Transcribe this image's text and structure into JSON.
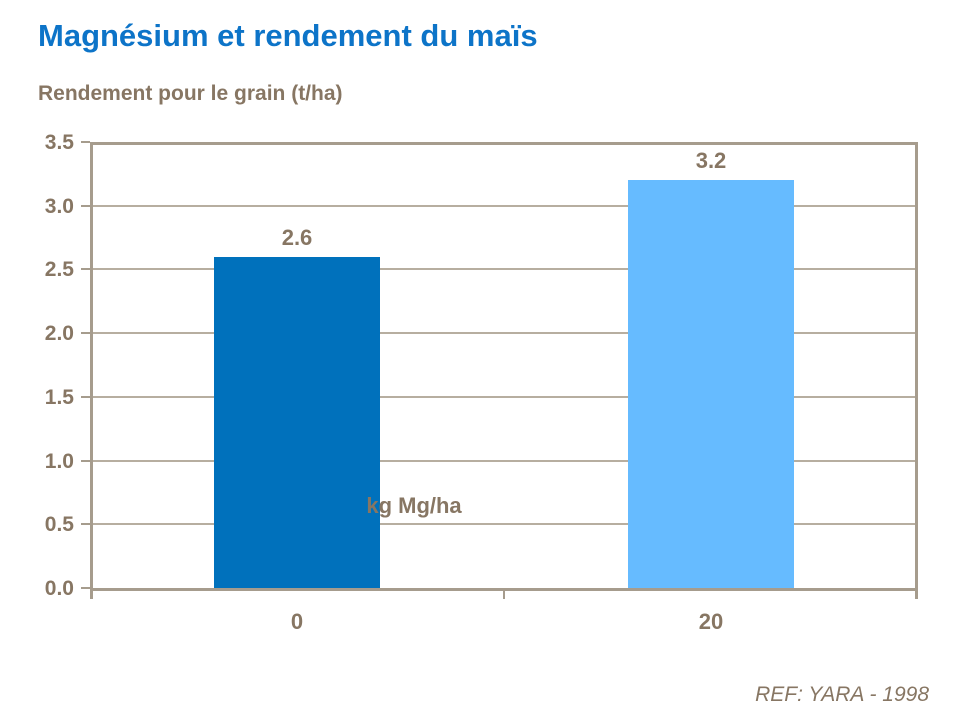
{
  "slide": {
    "title": "Magnésium et rendement du maïs",
    "subtitle": "Rendement pour le grain (t/ha)",
    "footer": "REF: YARA - 1998"
  },
  "chart_data": {
    "type": "bar",
    "title": "Magnésium et rendement du maïs",
    "ylabel": "Rendement pour le grain (t/ha)",
    "xlabel": "kg Mg/ha",
    "categories": [
      "0",
      "20"
    ],
    "values": [
      2.6,
      3.2
    ],
    "data_labels": [
      "2.6",
      "3.2"
    ],
    "bar_colors": [
      "#0071bc",
      "#66bbff"
    ],
    "ylim": [
      0,
      3.5
    ],
    "ytick_step": 0.5,
    "ytick_labels": [
      "0.0",
      "0.5",
      "1.0",
      "1.5",
      "2.0",
      "2.5",
      "3.0",
      "3.5"
    ],
    "grid": true,
    "legend": false,
    "source": "REF: YARA - 1998"
  },
  "colors": {
    "title_blue": "#0d74c8",
    "text_brown": "#877663",
    "axis": "#a69c8d",
    "gridline": "#b7aea0",
    "background": "#ffffff"
  }
}
